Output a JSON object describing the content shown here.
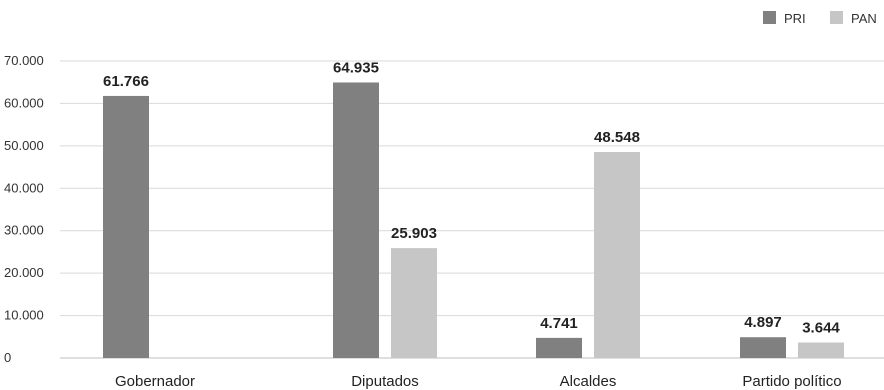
{
  "chart_data": {
    "type": "bar",
    "title": "",
    "xlabel": "",
    "ylabel": "",
    "categories": [
      "Gobernador",
      "Diputados",
      "Alcaldes",
      "Partido político"
    ],
    "series": [
      {
        "name": "PRI",
        "color": "#808080",
        "values": [
          61766,
          64935,
          4741,
          4897
        ],
        "labels": [
          "61.766",
          "64.935",
          "4.741",
          "4.897"
        ]
      },
      {
        "name": "PAN",
        "color": "#c6c6c6",
        "values": [
          null,
          25903,
          48548,
          3644
        ],
        "labels": [
          "",
          "25.903",
          "48.548",
          "3.644"
        ]
      }
    ],
    "ylim": [
      0,
      70000
    ],
    "yticks": [
      0,
      10000,
      20000,
      30000,
      40000,
      50000,
      60000,
      70000
    ],
    "ytick_labels": [
      "0",
      "10.000",
      "20.000",
      "30.000",
      "40.000",
      "50.000",
      "60.000",
      "70.000"
    ],
    "grid": true,
    "legend_position": "top-right"
  }
}
